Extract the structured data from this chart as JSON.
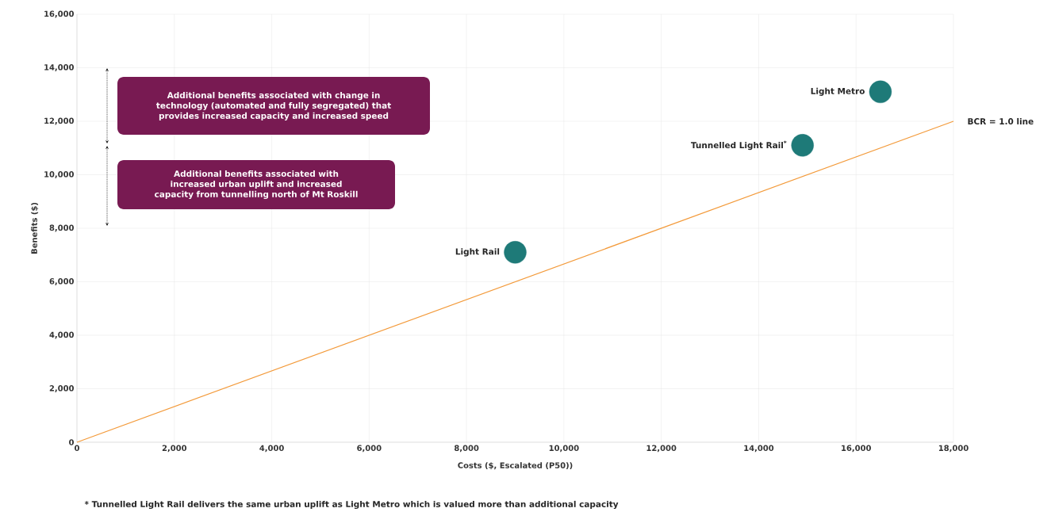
{
  "chart_data": {
    "type": "scatter",
    "xlabel": "Costs ($, Escalated (P50))",
    "ylabel": "Benefits ($)",
    "xlim": [
      0,
      18000
    ],
    "ylim": [
      0,
      16000
    ],
    "xticks": [
      0,
      {
        "value": 2000,
        "label": "2,000"
      },
      {
        "value": 4000,
        "label": "4,000"
      },
      {
        "value": 6000,
        "label": "6,000"
      },
      {
        "value": 8000,
        "label": "8,000"
      },
      {
        "value": 10000,
        "label": "10,000"
      },
      {
        "value": 12000,
        "label": "12,000"
      },
      {
        "value": 14000,
        "label": "14,000"
      },
      {
        "value": 16000,
        "label": "16,000"
      },
      {
        "value": 18000,
        "label": "18,000"
      }
    ],
    "yticks": [
      0,
      {
        "value": 2000,
        "label": "2,000"
      },
      {
        "value": 4000,
        "label": "4,000"
      },
      {
        "value": 6000,
        "label": "6,000"
      },
      {
        "value": 8000,
        "label": "8,000"
      },
      {
        "value": 10000,
        "label": "10,000"
      },
      {
        "value": 12000,
        "label": "12,000"
      },
      {
        "value": 14000,
        "label": "14,000"
      },
      {
        "value": 16000,
        "label": "16,000"
      }
    ],
    "grid": true,
    "series": [
      {
        "name": "Light Rail",
        "color": "#1e7a78",
        "x": [
          9000
        ],
        "values": [
          7100
        ],
        "marker": "circle"
      },
      {
        "name": "Tunnelled Light Rail$^{*}$",
        "color": "#1e7a78",
        "x": [
          14900
        ],
        "values": [
          11100
        ],
        "marker": "circle"
      },
      {
        "name": "Light Metro",
        "color": "#1e7a78",
        "x": [
          16500
        ],
        "values": [
          13100
        ],
        "marker": "circle"
      },
      {
        "name": "BCR = 1.0 line",
        "type": "line",
        "color": "#f39a3a",
        "x": [
          0,
          18000
        ],
        "values": [
          0,
          12000
        ],
        "marker": "none"
      }
    ],
    "annotations": [
      "Additional benefits associated with change in technology (automated and fully segregated) that provides increased capacity and increased speed",
      "Additional benefits associated with increased urban uplift and increased capacity from tunnelling north of Mt Roskill",
      "* Tunnelled Light Rail delivers the same urban uplift as Light Metro which is valued more than additional capacity"
    ]
  }
}
